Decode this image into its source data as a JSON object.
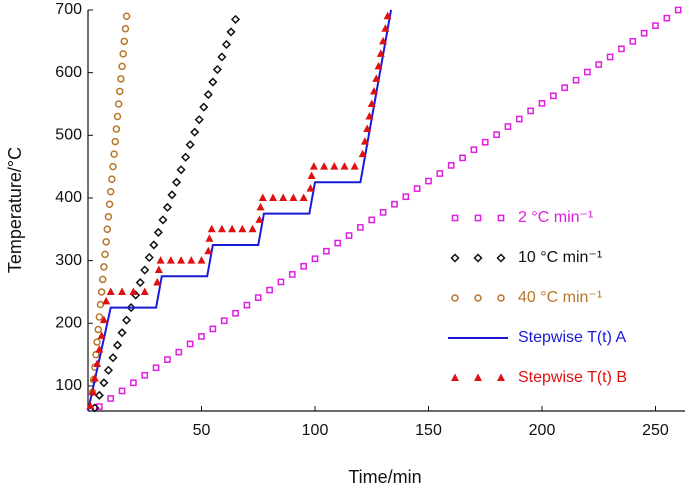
{
  "chart_data": {
    "type": "line",
    "xlabel": "Time/min",
    "ylabel": "Temperature/°C",
    "xlim": [
      0,
      263
    ],
    "ylim": [
      60,
      700
    ],
    "xticks": [
      50,
      100,
      150,
      200,
      250
    ],
    "yticks": [
      100,
      200,
      300,
      400,
      500,
      600,
      700
    ],
    "series": [
      {
        "name": "2 °C min⁻¹",
        "color": "#e020e0",
        "marker": "square",
        "x": [
          5,
          10,
          15,
          20,
          25,
          30,
          35,
          40,
          45,
          50,
          55,
          60,
          65,
          70,
          75,
          80,
          85,
          90,
          95,
          100,
          105,
          110,
          115,
          120,
          125,
          130,
          135,
          140,
          145,
          150,
          155,
          160,
          165,
          170,
          175,
          180,
          185,
          190,
          195,
          200,
          205,
          210,
          215,
          220,
          225,
          230,
          235,
          240,
          245,
          250,
          255,
          260
        ],
        "values": [
          67,
          80,
          92,
          105,
          117,
          129,
          142,
          154,
          167,
          179,
          191,
          204,
          216,
          229,
          241,
          253,
          266,
          278,
          291,
          303,
          315,
          328,
          340,
          353,
          365,
          377,
          390,
          402,
          415,
          427,
          439,
          452,
          464,
          477,
          489,
          501,
          514,
          526,
          539,
          551,
          563,
          576,
          588,
          601,
          613,
          625,
          638,
          650,
          663,
          675,
          687,
          700
        ]
      },
      {
        "name": "10 °C min⁻¹",
        "color": "#111111",
        "marker": "diamond",
        "x": [
          3,
          5,
          7,
          9,
          11,
          13,
          15,
          17,
          19,
          21,
          23,
          25,
          27,
          29,
          31,
          33,
          35,
          37,
          39,
          41,
          43,
          45,
          47,
          49,
          51,
          53,
          55,
          57,
          59,
          61,
          63,
          65
        ],
        "values": [
          65,
          85,
          105,
          125,
          145,
          165,
          185,
          205,
          225,
          245,
          265,
          285,
          305,
          325,
          345,
          365,
          385,
          405,
          425,
          445,
          465,
          485,
          505,
          525,
          545,
          565,
          585,
          605,
          625,
          645,
          665,
          685
        ]
      },
      {
        "name": "40 °C min⁻¹",
        "color": "#b8762a",
        "marker": "circle",
        "x": [
          2,
          2.5,
          3,
          3.5,
          4,
          4.5,
          5,
          5.5,
          6,
          6.5,
          7,
          7.5,
          8,
          8.5,
          9,
          9.5,
          10,
          10.5,
          11,
          11.5,
          12,
          12.5,
          13,
          13.5,
          14,
          14.5,
          15,
          15.5,
          16,
          16.5,
          17
        ],
        "values": [
          90,
          110,
          130,
          150,
          170,
          190,
          210,
          230,
          250,
          270,
          290,
          310,
          330,
          350,
          370,
          390,
          410,
          430,
          450,
          470,
          490,
          510,
          530,
          550,
          570,
          590,
          610,
          630,
          650,
          670,
          690
        ]
      },
      {
        "name": "Stepwise T(t) A",
        "color": "#1a1ad6",
        "marker": "line",
        "x": [
          0,
          10,
          30,
          32.5,
          52.5,
          55,
          75,
          77.5,
          97.5,
          100,
          120,
          133.5
        ],
        "values": [
          60,
          225,
          225,
          275,
          275,
          325,
          325,
          375,
          375,
          425,
          425,
          700
        ]
      },
      {
        "name": "Stepwise T(t) B",
        "color": "#e01010",
        "marker": "triangle",
        "x": [
          1,
          2,
          3,
          4,
          5,
          6,
          7,
          8,
          10,
          15,
          20,
          25,
          30.5,
          31.2,
          32,
          36.5,
          41,
          45.5,
          50,
          53,
          53.5,
          54.5,
          59,
          63.5,
          68,
          72.5,
          75.5,
          76,
          77,
          81.5,
          86,
          90.5,
          95,
          98,
          98.5,
          99.5,
          104,
          108.5,
          113,
          117.5,
          121,
          122,
          123,
          124,
          125,
          126,
          127,
          128,
          129,
          130,
          131,
          132
        ],
        "values": [
          68,
          90,
          112,
          135,
          158,
          180,
          205,
          235,
          250,
          250,
          250,
          250,
          265,
          285,
          300,
          300,
          300,
          300,
          300,
          315,
          335,
          350,
          350,
          350,
          350,
          350,
          365,
          385,
          400,
          400,
          400,
          400,
          400,
          415,
          435,
          450,
          450,
          450,
          450,
          450,
          470,
          490,
          510,
          530,
          550,
          570,
          590,
          610,
          630,
          650,
          670,
          690
        ]
      }
    ]
  }
}
